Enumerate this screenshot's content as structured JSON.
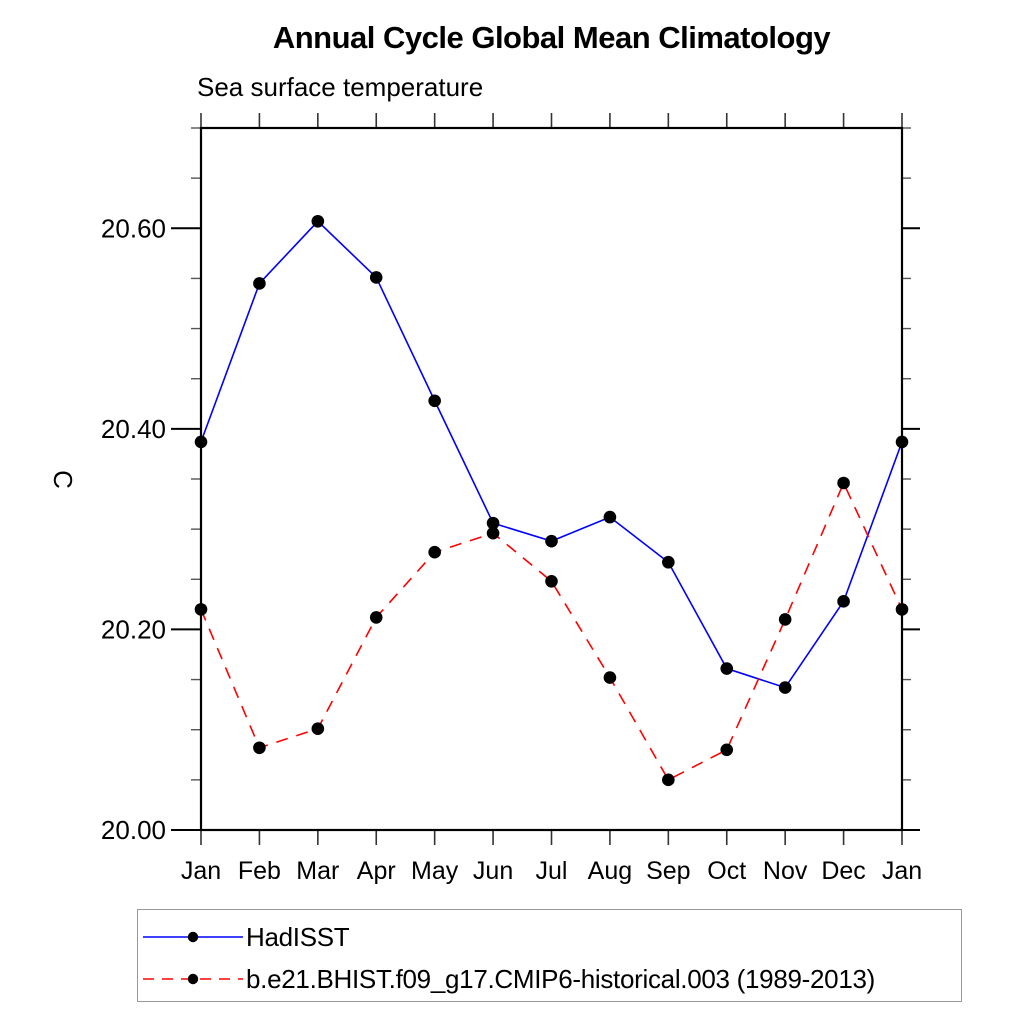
{
  "page": {
    "background": "#ffffff"
  },
  "chart_data": {
    "type": "line",
    "title": "Annual Cycle Global Mean Climatology",
    "subtitle": "Sea surface temperature",
    "ylabel": "C",
    "xlabel": "",
    "categories": [
      "Jan",
      "Feb",
      "Mar",
      "Apr",
      "May",
      "Jun",
      "Jul",
      "Aug",
      "Sep",
      "Oct",
      "Nov",
      "Dec",
      "Jan"
    ],
    "ylim": [
      20.0,
      20.7
    ],
    "ytick_major": [
      20.0,
      20.2,
      20.4,
      20.6
    ],
    "ytick_major_labels": [
      "20.00",
      "20.20",
      "20.40",
      "20.60"
    ],
    "ytick_minor_step": 0.05,
    "grid": false,
    "frame_color": "#000000",
    "legend_position": "below-plot-boxed",
    "series": [
      {
        "name": "HadISST",
        "color": "#0000ff",
        "line_style": "solid",
        "marker": "filled-circle",
        "marker_color": "#000000",
        "values": [
          20.387,
          20.545,
          20.607,
          20.551,
          20.428,
          20.306,
          20.288,
          20.312,
          20.267,
          20.161,
          20.142,
          20.228,
          20.387
        ]
      },
      {
        "name": "b.e21.BHIST.f09_g17.CMIP6-historical.003 (1989-2013)",
        "color": "#ff0000",
        "line_style": "dashed",
        "marker": "filled-circle",
        "marker_color": "#000000",
        "values": [
          20.22,
          20.082,
          20.101,
          20.212,
          20.277,
          20.296,
          20.248,
          20.152,
          20.05,
          20.08,
          20.21,
          20.346,
          20.22
        ]
      }
    ]
  }
}
